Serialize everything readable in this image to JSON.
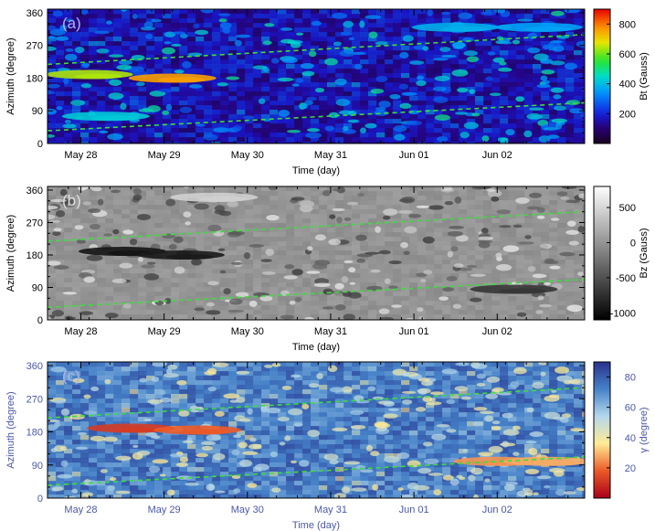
{
  "chart_data": [
    {
      "type": "heatmap",
      "panel_label": "(a)",
      "x_tick_labels": [
        "May 28",
        "May 29",
        "May 30",
        "May 31",
        "Jun 01",
        "Jun 02"
      ],
      "xlabel": "Time (day)",
      "ylabel": "Azimuth (degree)",
      "y_ticks": [
        0,
        90,
        180,
        270,
        360
      ],
      "ylim": [
        0,
        370
      ],
      "colorbar": {
        "label": "Bt (Gauss)",
        "ticks": [
          200,
          400,
          600,
          800
        ],
        "range": [
          0,
          900
        ],
        "colormap": "rainbow"
      },
      "boundaries": [
        {
          "name": "upper",
          "y": [
            218,
            300
          ]
        },
        {
          "name": "lower",
          "y": [
            35,
            112
          ]
        }
      ],
      "features": [
        {
          "day": 0.1,
          "azimuth": 190,
          "value": 640
        },
        {
          "day": 1.1,
          "azimuth": 180,
          "value": 760
        },
        {
          "day": 0.3,
          "azimuth": 75,
          "value": 420
        },
        {
          "day": 4.5,
          "azimuth": 320,
          "value": 380
        },
        {
          "day": 5.5,
          "azimuth": 320,
          "value": 360
        }
      ]
    },
    {
      "type": "heatmap",
      "panel_label": "(b)",
      "x_tick_labels": [
        "May 28",
        "May 29",
        "May 30",
        "May 31",
        "Jun 01",
        "Jun 02"
      ],
      "xlabel": "Time (day)",
      "ylabel": "Azimuth (degree)",
      "y_ticks": [
        0,
        90,
        180,
        270,
        360
      ],
      "ylim": [
        0,
        370
      ],
      "colorbar": {
        "label": "Bz (Gauss)",
        "ticks": [
          500,
          0,
          -500,
          -1000
        ],
        "range": [
          -1100,
          800
        ],
        "colormap": "gray"
      },
      "boundaries": [
        {
          "name": "upper",
          "y": [
            218,
            300
          ]
        },
        {
          "name": "lower",
          "y": [
            35,
            112
          ]
        }
      ],
      "features": [
        {
          "day": 0.5,
          "azimuth": 190,
          "value": -950
        },
        {
          "day": 1.2,
          "azimuth": 180,
          "value": -900
        },
        {
          "day": 1.6,
          "azimuth": 340,
          "value": 450
        },
        {
          "day": 5.2,
          "azimuth": 85,
          "value": -700
        }
      ]
    },
    {
      "type": "heatmap",
      "panel_label": "(c)",
      "x_tick_labels": [
        "May 28",
        "May 29",
        "May 30",
        "May 31",
        "Jun 01",
        "Jun 02"
      ],
      "xlabel": "Time (day)",
      "ylabel": "Azimuth (degree)",
      "y_ticks": [
        0,
        90,
        180,
        270,
        360
      ],
      "ylim": [
        0,
        370
      ],
      "colorbar": {
        "label": "γ (degree)",
        "ticks": [
          20,
          40,
          60,
          80
        ],
        "range": [
          0,
          90
        ],
        "colormap": "red-yellow-blue"
      },
      "boundaries": [
        {
          "name": "upper",
          "y": [
            218,
            300
          ]
        },
        {
          "name": "lower",
          "y": [
            35,
            112
          ]
        }
      ],
      "features": [
        {
          "day": 0.6,
          "azimuth": 190,
          "value": 12
        },
        {
          "day": 1.4,
          "azimuth": 185,
          "value": 18
        },
        {
          "day": 5.0,
          "azimuth": 100,
          "value": 25
        },
        {
          "day": 5.6,
          "azimuth": 100,
          "value": 28
        }
      ]
    }
  ]
}
